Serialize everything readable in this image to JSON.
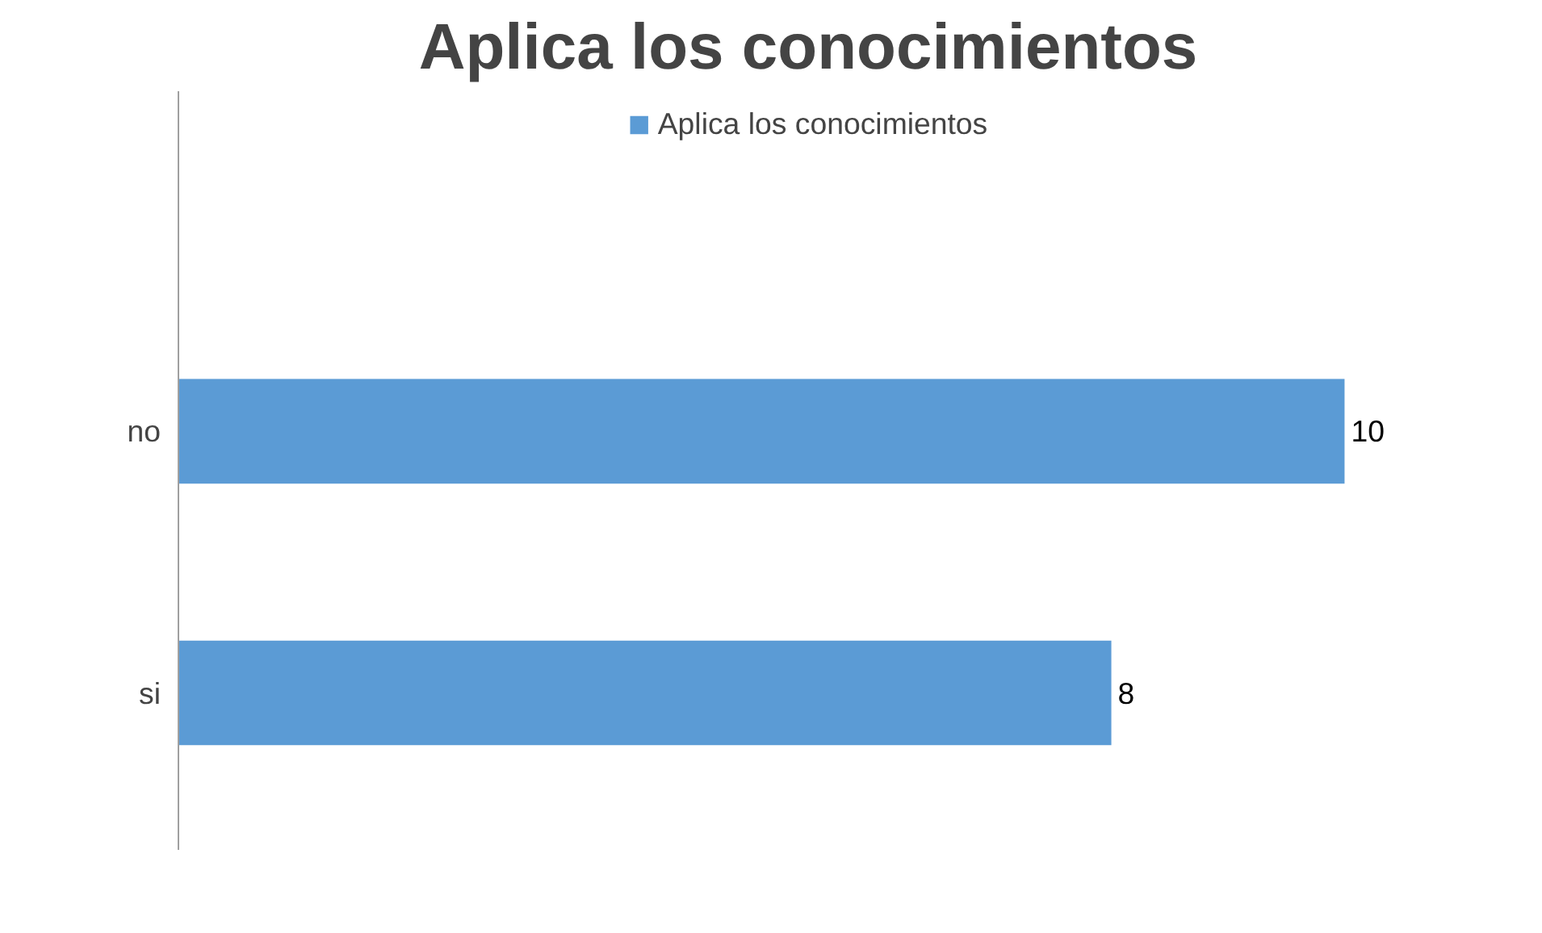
{
  "chart_data": {
    "type": "bar",
    "orientation": "horizontal",
    "title": "Aplica los conocimientos",
    "categories": [
      "no",
      "si"
    ],
    "series": [
      {
        "name": "Aplica los conocimientos",
        "color": "#5b9bd5",
        "values": [
          10,
          8
        ]
      }
    ],
    "data_labels": true,
    "legend": "top",
    "tick_labels": "y",
    "grid": false
  }
}
